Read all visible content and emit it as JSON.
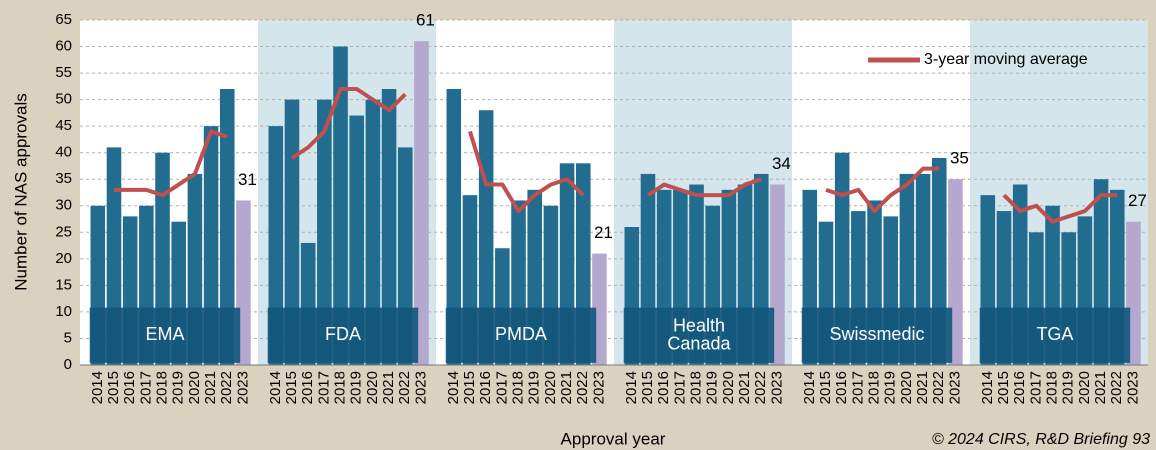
{
  "chart_data": {
    "type": "bar",
    "ylabel": "Number of NAS approvals",
    "xlabel": "Approval year",
    "footnote": "© 2024 CIRS, R&D Briefing 93",
    "categories": [
      "2014",
      "2015",
      "2016",
      "2017",
      "2018",
      "2019",
      "2020",
      "2021",
      "2022",
      "2023"
    ],
    "ylim": [
      0,
      65
    ],
    "yticks": [
      0,
      5,
      10,
      15,
      20,
      25,
      30,
      35,
      40,
      45,
      50,
      55,
      60,
      65
    ],
    "grid": true,
    "color": "#216c8f",
    "last_color": "#b5a8cf",
    "line_name": "3-year moving average",
    "line_color": "#c0504d",
    "legend": "upper right",
    "groups": [
      {
        "name": "EMA",
        "shaded": false,
        "values": [
          30,
          41,
          28,
          30,
          40,
          27,
          36,
          45,
          52,
          31
        ],
        "moving_average": [
          null,
          33,
          33,
          33,
          32,
          34,
          36,
          44,
          43,
          null
        ]
      },
      {
        "name": "FDA",
        "shaded": true,
        "values": [
          45,
          50,
          23,
          50,
          60,
          47,
          50,
          52,
          41,
          61
        ],
        "moving_average": [
          null,
          39,
          41,
          44,
          52,
          52,
          50,
          48,
          51,
          null
        ]
      },
      {
        "name": "PMDA",
        "shaded": false,
        "values": [
          52,
          32,
          48,
          22,
          31,
          33,
          30,
          38,
          38,
          21
        ],
        "moving_average": [
          null,
          44,
          34,
          34,
          29,
          32,
          34,
          35,
          32,
          null
        ]
      },
      {
        "name": "Health\nCanada",
        "shaded": true,
        "values": [
          26,
          36,
          33,
          33,
          34,
          30,
          33,
          34,
          36,
          34
        ],
        "moving_average": [
          null,
          32,
          34,
          33,
          32,
          32,
          32,
          34,
          35,
          null
        ]
      },
      {
        "name": "Swissmedic",
        "shaded": false,
        "values": [
          33,
          27,
          40,
          29,
          31,
          28,
          36,
          36,
          39,
          35
        ],
        "moving_average": [
          null,
          33,
          32,
          33,
          29,
          32,
          34,
          37,
          37,
          null
        ]
      },
      {
        "name": "TGA",
        "shaded": true,
        "values": [
          32,
          29,
          34,
          25,
          30,
          25,
          28,
          35,
          33,
          27
        ],
        "moving_average": [
          null,
          32,
          29,
          30,
          27,
          28,
          29,
          32,
          32,
          null
        ]
      }
    ]
  }
}
